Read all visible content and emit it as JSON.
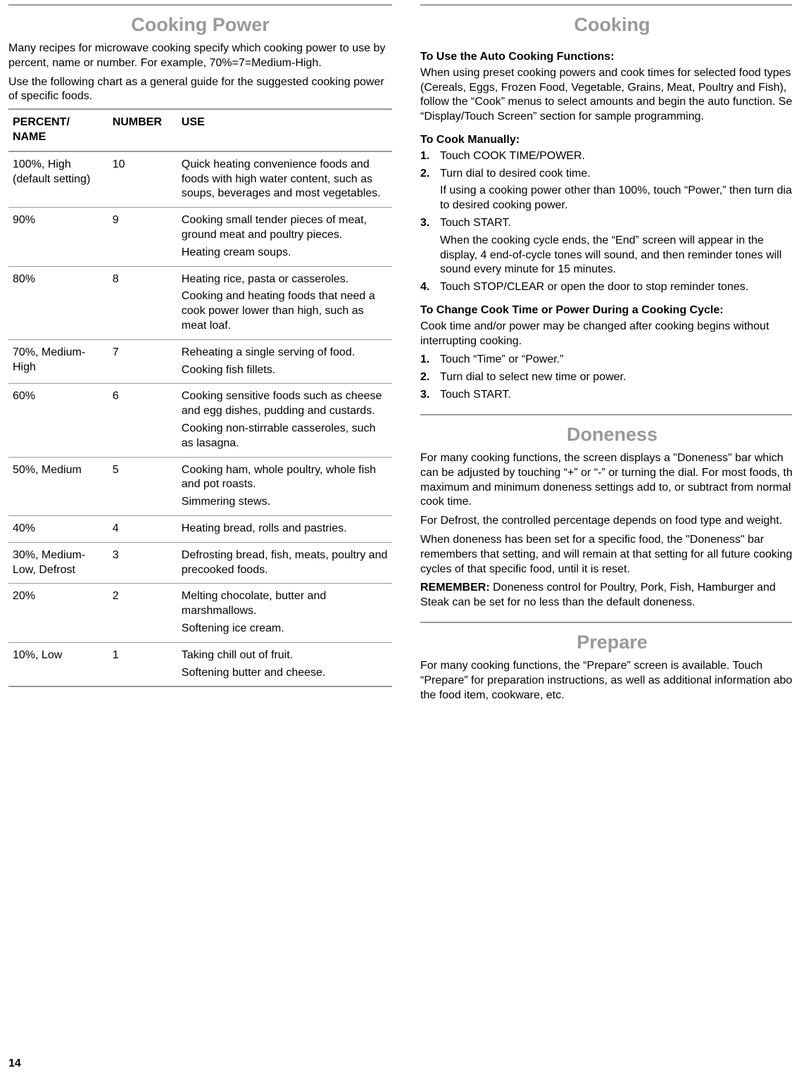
{
  "pageNumber": "14",
  "left": {
    "title": "Cooking Power",
    "intro1": "Many recipes for microwave cooking specify which cooking power to use by percent, name or number. For example, 70%=7=Medium-High.",
    "intro2": "Use the following chart as a general guide for the suggested cooking power of specific foods.",
    "table": {
      "headers": {
        "c1a": "PERCENT/",
        "c1b": "NAME",
        "c2": "NUMBER",
        "c3": "USE"
      },
      "rows": [
        {
          "pn": "100%, High (default setting)",
          "num": "10",
          "uses": [
            "Quick heating convenience foods and foods with high water content, such as soups, beverages and most vegetables."
          ]
        },
        {
          "pn": "90%",
          "num": "9",
          "uses": [
            "Cooking small tender pieces of meat, ground meat and poultry pieces.",
            "Heating cream soups."
          ]
        },
        {
          "pn": "80%",
          "num": "8",
          "uses": [
            "Heating rice, pasta or casseroles.",
            "Cooking and heating foods that need a cook power lower than high, such as meat loaf."
          ]
        },
        {
          "pn": "70%, Medium-High",
          "num": "7",
          "uses": [
            "Reheating a single serving of food.",
            "Cooking fish fillets."
          ]
        },
        {
          "pn": "60%",
          "num": "6",
          "uses": [
            "Cooking sensitive foods such as cheese and egg dishes, pudding and custards.",
            "Cooking non-stirrable casseroles, such as lasagna."
          ]
        },
        {
          "pn": "50%, Medium",
          "num": "5",
          "uses": [
            "Cooking ham, whole poultry, whole fish and pot roasts.",
            "Simmering stews."
          ]
        },
        {
          "pn": "40%",
          "num": "4",
          "uses": [
            "Heating bread, rolls and pastries."
          ]
        },
        {
          "pn": "30%, Medium-Low, Defrost",
          "num": "3",
          "uses": [
            "Defrosting bread, fish, meats, poultry and precooked foods."
          ]
        },
        {
          "pn": "20%",
          "num": "2",
          "uses": [
            "Melting chocolate, butter and marshmallows.",
            "Softening ice cream."
          ]
        },
        {
          "pn": "10%, Low",
          "num": "1",
          "uses": [
            "Taking chill out of fruit.",
            "Softening butter and cheese."
          ]
        }
      ]
    }
  },
  "right": {
    "cooking": {
      "title": "Cooking",
      "autoHead": "To Use the Auto Cooking Functions:",
      "autoText": "When using preset cooking powers and cook times for selected food types (Cereals, Eggs, Frozen Food, Vegetable, Grains, Meat, Poultry and Fish), follow the “Cook” menus to select amounts and begin the auto function. See “Display/Touch Screen” section for sample programming.",
      "manualHead": "To Cook Manually:",
      "manualSteps": [
        {
          "n": "1.",
          "t": "Touch COOK TIME/POWER.",
          "sub": ""
        },
        {
          "n": "2.",
          "t": "Turn dial to desired cook time.",
          "sub": "If using a cooking power other than 100%, touch “Power,” then turn dial to desired cooking power."
        },
        {
          "n": "3.",
          "t": "Touch START.",
          "sub": "When the cooking cycle ends, the “End” screen will appear in the display, 4 end-of-cycle tones will sound, and then reminder tones will sound every minute for 15 minutes."
        },
        {
          "n": "4.",
          "t": "Touch STOP/CLEAR or open the door to stop reminder tones.",
          "sub": ""
        }
      ],
      "changeHead": "To Change Cook Time or Power During a Cooking Cycle:",
      "changeText": "Cook time and/or power may be changed after cooking begins without interrupting cooking.",
      "changeSteps": [
        {
          "n": "1.",
          "t": "Touch “Time” or “Power.”"
        },
        {
          "n": "2.",
          "t": "Turn dial to select new time or power."
        },
        {
          "n": "3.",
          "t": "Touch START."
        }
      ]
    },
    "doneness": {
      "title": "Doneness",
      "p1": "For many cooking functions, the screen displays a \"Doneness\" bar which can be adjusted by touching “+” or “-” or turning the dial. For most foods, the maximum and minimum doneness settings add to, or subtract from normal cook time.",
      "p2": "For Defrost, the controlled percentage depends on food type and weight.",
      "p3": "When doneness has been set for a specific food, the \"Doneness\" bar remembers that setting, and will remain at that setting for all future cooking cycles of that specific food, until it is reset.",
      "remLabel": "REMEMBER:",
      "remText": " Doneness control for Poultry, Pork, Fish, Hamburger and Steak can be set for no less than the default doneness."
    },
    "prepare": {
      "title": "Prepare",
      "p1": "For many cooking functions, the “Prepare” screen is available. Touch “Prepare” for preparation instructions, as well as additional information about the food item, cookware, etc."
    }
  }
}
